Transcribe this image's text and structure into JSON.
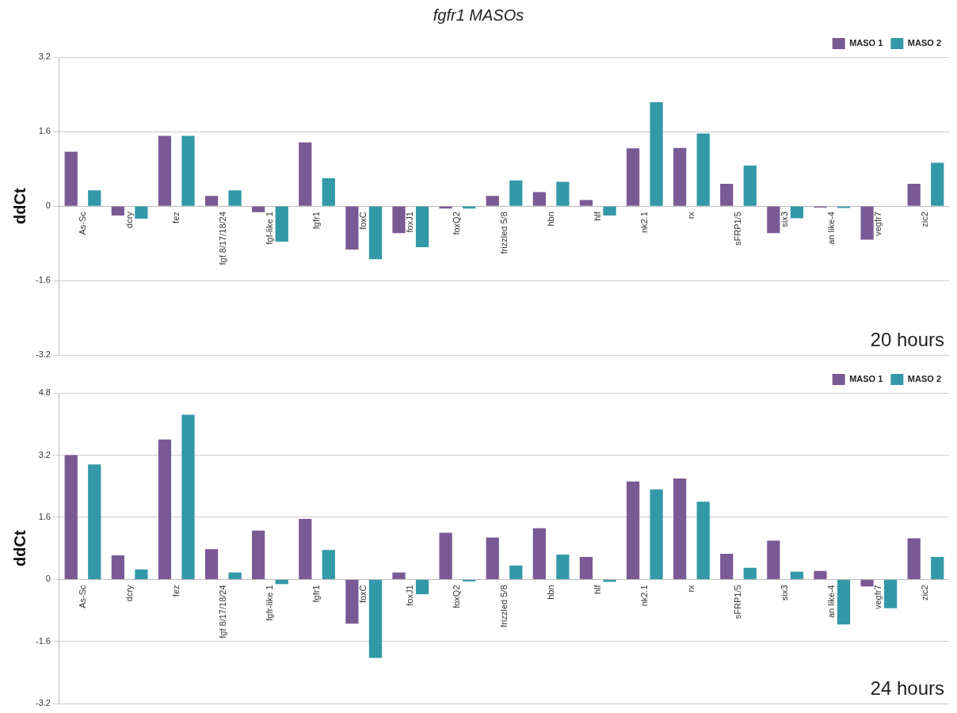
{
  "chart_data": [
    {
      "type": "bar",
      "title": "fgfr1 MASOs",
      "ylabel": "ddCt",
      "annotations": [
        "20 hours"
      ],
      "categories": [
        "As-Sc",
        "dcry",
        "fez",
        "fgf 8/17/18/24",
        "fgf-like 1",
        "fgfr1",
        "foxC",
        "foxJ1",
        "foxQ2",
        "frizzled 5/8",
        "hbn",
        "hlf",
        "nk2.1",
        "rx",
        "sFRP1/5",
        "six3",
        "an like-4",
        "vegfr7",
        "zic2"
      ],
      "series": [
        {
          "name": "MASO 1",
          "color": "#7a5a95",
          "values": [
            1.17,
            -0.2,
            1.51,
            0.22,
            -0.13,
            1.37,
            -0.93,
            -0.58,
            -0.05,
            0.22,
            0.3,
            0.13,
            1.24,
            1.25,
            0.48,
            -0.58,
            -0.03,
            -0.72,
            0.48
          ]
        },
        {
          "name": "MASO 2",
          "color": "#3399a8",
          "values": [
            0.34,
            -0.27,
            1.51,
            0.34,
            -0.76,
            0.6,
            -1.14,
            -0.88,
            -0.05,
            0.55,
            0.52,
            -0.2,
            2.23,
            1.56,
            0.87,
            -0.26,
            -0.04,
            null,
            0.93
          ]
        }
      ],
      "ylim": [
        -3.2,
        3.2
      ],
      "yticks": [
        -3.2,
        -1.6,
        0,
        1.6,
        3.2
      ],
      "grid": "y",
      "legend": "top right"
    },
    {
      "type": "bar",
      "ylabel": "ddCt",
      "annotations": [
        "24 hours"
      ],
      "categories": [
        "As-Sc",
        "dcry",
        "fez",
        "fgf 8/17/18/24",
        "fgfr-like 1",
        "fgfr1",
        "foxC",
        "foxJ1",
        "foxQ2",
        "frizzled 5/8",
        "hbn",
        "hlf",
        "nk2.1",
        "rx",
        "sFRP1/5",
        "six3",
        "an like-4",
        "vegfr7",
        "zic2"
      ],
      "series": [
        {
          "name": "MASO 1",
          "color": "#7a5a95",
          "values": [
            3.2,
            0.62,
            3.6,
            0.78,
            1.26,
            1.56,
            -1.14,
            0.18,
            1.2,
            1.08,
            1.32,
            0.58,
            2.52,
            2.6,
            0.66,
            1.0,
            0.22,
            -0.18,
            1.06
          ]
        },
        {
          "name": "MASO 2",
          "color": "#3399a8",
          "values": [
            2.96,
            0.26,
            4.24,
            0.18,
            -0.12,
            0.76,
            -2.02,
            -0.38,
            -0.05,
            0.36,
            0.64,
            -0.06,
            2.32,
            2.0,
            0.3,
            0.2,
            -1.16,
            -0.74,
            0.58
          ]
        }
      ],
      "ylim": [
        -3.2,
        4.8
      ],
      "yticks": [
        -3.2,
        -1.6,
        0,
        1.6,
        3.2,
        4.8
      ],
      "grid": "y",
      "legend": "top right"
    }
  ]
}
